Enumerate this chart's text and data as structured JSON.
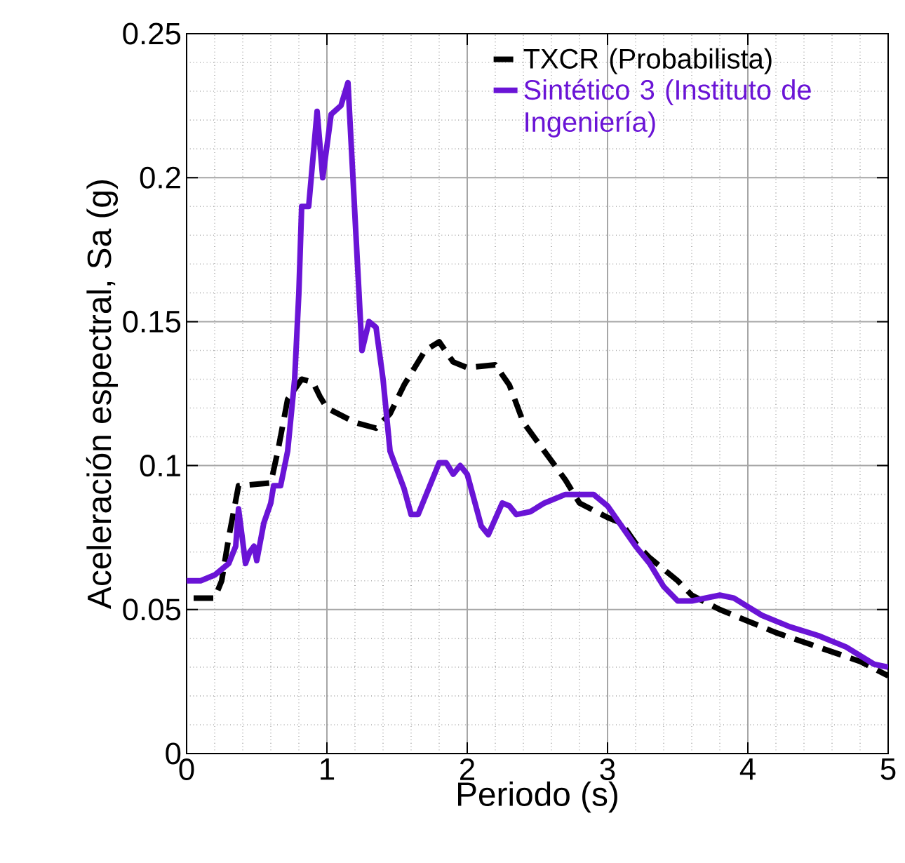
{
  "chart_data": {
    "type": "line",
    "xlabel": "Periodo (s)",
    "ylabel": "Aceleración espectral, Sa (g)",
    "xlim": [
      0,
      5
    ],
    "ylim": [
      0,
      0.25
    ],
    "xticks": [
      0,
      1,
      2,
      3,
      4,
      5
    ],
    "yticks": [
      0,
      0.05,
      0.1,
      0.15,
      0.2,
      0.25
    ],
    "grid": true,
    "legend": "top right",
    "series": [
      {
        "name": "TXCR (Probabilista)",
        "color": "#000000",
        "line_style": "dashed",
        "x": [
          0.05,
          0.2,
          0.25,
          0.3,
          0.37,
          0.6,
          0.65,
          0.72,
          0.82,
          0.9,
          0.95,
          1.0,
          1.2,
          1.35,
          1.45,
          1.55,
          1.7,
          1.8,
          1.9,
          2.0,
          2.2,
          2.3,
          2.4,
          2.55,
          2.7,
          2.8,
          3.0,
          3.1,
          3.2,
          3.3,
          3.5,
          3.6,
          3.8,
          4.0,
          4.2,
          4.5,
          4.8,
          5.0
        ],
        "values": [
          0.054,
          0.054,
          0.06,
          0.075,
          0.093,
          0.094,
          0.105,
          0.123,
          0.13,
          0.129,
          0.124,
          0.12,
          0.115,
          0.113,
          0.118,
          0.128,
          0.14,
          0.143,
          0.136,
          0.134,
          0.135,
          0.128,
          0.115,
          0.105,
          0.095,
          0.087,
          0.082,
          0.08,
          0.073,
          0.068,
          0.06,
          0.055,
          0.05,
          0.046,
          0.042,
          0.037,
          0.032,
          0.027
        ]
      },
      {
        "name": "Sintético 3 (Instituto de Ingeniería)",
        "color": "#6a14d6",
        "line_style": "solid",
        "x": [
          0,
          0.1,
          0.2,
          0.3,
          0.35,
          0.37,
          0.42,
          0.45,
          0.48,
          0.5,
          0.55,
          0.6,
          0.62,
          0.67,
          0.72,
          0.77,
          0.8,
          0.82,
          0.87,
          0.93,
          0.97,
          1.03,
          1.1,
          1.15,
          1.25,
          1.3,
          1.35,
          1.4,
          1.45,
          1.55,
          1.6,
          1.65,
          1.8,
          1.85,
          1.9,
          1.95,
          2.0,
          2.1,
          2.15,
          2.25,
          2.3,
          2.35,
          2.45,
          2.55,
          2.7,
          2.9,
          3.0,
          3.1,
          3.2,
          3.3,
          3.4,
          3.5,
          3.6,
          3.8,
          3.9,
          4.1,
          4.3,
          4.5,
          4.7,
          4.9,
          5.0
        ],
        "values": [
          0.06,
          0.06,
          0.062,
          0.066,
          0.072,
          0.085,
          0.066,
          0.07,
          0.072,
          0.067,
          0.08,
          0.087,
          0.093,
          0.093,
          0.105,
          0.13,
          0.16,
          0.19,
          0.19,
          0.223,
          0.2,
          0.222,
          0.225,
          0.233,
          0.14,
          0.15,
          0.148,
          0.13,
          0.105,
          0.092,
          0.083,
          0.083,
          0.101,
          0.101,
          0.097,
          0.1,
          0.097,
          0.079,
          0.076,
          0.087,
          0.086,
          0.083,
          0.084,
          0.087,
          0.09,
          0.09,
          0.086,
          0.079,
          0.072,
          0.066,
          0.058,
          0.053,
          0.053,
          0.055,
          0.054,
          0.048,
          0.044,
          0.041,
          0.037,
          0.031,
          0.03
        ]
      }
    ]
  }
}
